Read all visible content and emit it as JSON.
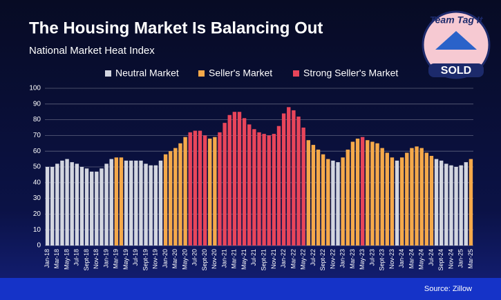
{
  "chart_data": {
    "type": "bar",
    "title": "The Housing Market Is Balancing Out",
    "subtitle": "National Market Heat Index",
    "source": "Source: Zillow",
    "logo": {
      "top": "Team Tag It",
      "bottom": "SOLD"
    },
    "categories": [
      "Jan-18",
      null,
      "Mar-18",
      null,
      "May-18",
      null,
      "Jul-18",
      null,
      "Sept-18",
      null,
      "Nov-18",
      null,
      "Jan-19",
      null,
      "Mar-19",
      null,
      "May-19",
      null,
      "Jul-19",
      null,
      "Sept-19",
      null,
      "Nov-19",
      null,
      "Jan-20",
      null,
      "Mar-20",
      null,
      "May-20",
      null,
      "Jul-20",
      null,
      "Sept-20",
      null,
      "Nov-20",
      null,
      "Jan-21",
      null,
      "Mar-21",
      null,
      "May-21",
      null,
      "Jul-21",
      null,
      "Sept-21",
      null,
      "Nov-21",
      null,
      "Jan-22",
      null,
      "Mar-22",
      null,
      "May-22",
      null,
      "Jul-22",
      null,
      "Sept-22",
      null,
      "Nov-22",
      null,
      "Jan-23",
      null,
      "Mar-23",
      null,
      "May-23",
      null,
      "Jul-23",
      null,
      "Sept-23",
      null,
      "Nov-23",
      null,
      "Jan-24",
      null,
      "Mar-24",
      null,
      "May-24",
      null,
      "Jul-24",
      null,
      "Sept-24",
      null,
      "Nov-24",
      null,
      "Jan-25",
      null,
      "Mar-25"
    ],
    "series": [
      {
        "name": "Neutral Market",
        "color": "#d3d6e0",
        "values": [
          50,
          50,
          52,
          54,
          55,
          53,
          52,
          50,
          49,
          47,
          47,
          49,
          52,
          55,
          null,
          null,
          54,
          54,
          54,
          54,
          52,
          51,
          51,
          54,
          null,
          null,
          null,
          null,
          null,
          null,
          null,
          null,
          null,
          null,
          null,
          null,
          null,
          null,
          null,
          null,
          null,
          null,
          null,
          null,
          null,
          null,
          null,
          null,
          null,
          null,
          null,
          null,
          null,
          null,
          null,
          null,
          null,
          null,
          54,
          53,
          null,
          null,
          null,
          null,
          null,
          null,
          null,
          null,
          null,
          null,
          null,
          54,
          null,
          null,
          null,
          null,
          null,
          null,
          null,
          55,
          54,
          52,
          51,
          50,
          51,
          53,
          null
        ]
      },
      {
        "name": "Seller's Market",
        "color": "#f5a94a",
        "values": [
          null,
          null,
          null,
          null,
          null,
          null,
          null,
          null,
          null,
          null,
          null,
          null,
          null,
          null,
          56,
          56,
          null,
          null,
          null,
          null,
          null,
          null,
          null,
          null,
          58,
          60,
          62,
          65,
          69,
          null,
          null,
          null,
          null,
          68,
          69,
          null,
          null,
          null,
          null,
          null,
          null,
          null,
          null,
          null,
          null,
          null,
          null,
          null,
          null,
          null,
          null,
          null,
          null,
          67,
          64,
          61,
          58,
          55,
          null,
          null,
          56,
          61,
          66,
          68,
          null,
          67,
          66,
          65,
          62,
          59,
          56,
          null,
          56,
          59,
          62,
          63,
          62,
          59,
          57,
          null,
          null,
          null,
          null,
          null,
          null,
          null,
          55
        ]
      },
      {
        "name": "Strong Seller's Market",
        "color": "#e8455a",
        "values": [
          null,
          null,
          null,
          null,
          null,
          null,
          null,
          null,
          null,
          null,
          null,
          null,
          null,
          null,
          null,
          null,
          null,
          null,
          null,
          null,
          null,
          null,
          null,
          null,
          null,
          null,
          null,
          null,
          null,
          72,
          73,
          73,
          70,
          null,
          null,
          72,
          78,
          83,
          85,
          85,
          81,
          77,
          74,
          72,
          71,
          70,
          71,
          76,
          84,
          88,
          86,
          82,
          75,
          null,
          null,
          null,
          null,
          null,
          null,
          null,
          null,
          null,
          null,
          null,
          69,
          null,
          null,
          null,
          null,
          null,
          null,
          null,
          null,
          null,
          null,
          null,
          null,
          null,
          null,
          null,
          null,
          null,
          null,
          null,
          null,
          null,
          null
        ]
      }
    ],
    "ylim": [
      0,
      100
    ],
    "yticks": [
      0,
      10,
      20,
      30,
      40,
      50,
      60,
      70,
      80,
      90,
      100
    ],
    "grid": true
  }
}
